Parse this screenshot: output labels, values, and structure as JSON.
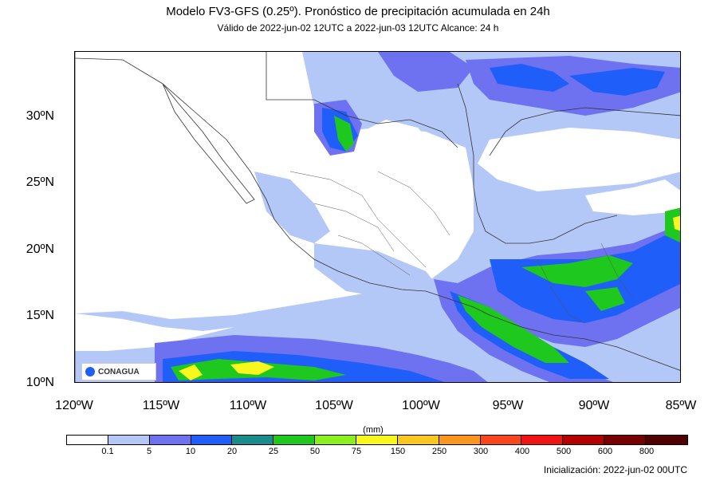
{
  "title": "Modelo FV3-GFS (0.25º). Pronóstico de precipitación acumulada en 24h",
  "subtitle": "Válido de 2022-jun-02 12UTC a 2022-jun-03 12UTC    Alcance: 24 h",
  "units": "(mm)",
  "initialization": "Inicialización: 2022-jun-02 00UTC",
  "logo_text": "CONAGUA",
  "latitudes": [
    "30ºN",
    "25ºN",
    "20ºN",
    "15ºN",
    "10ºN"
  ],
  "longitudes": [
    "120ºW",
    "115ºW",
    "110ºW",
    "105ºW",
    "100ºW",
    "95ºW",
    "90ºW",
    "85ºW"
  ],
  "colorbar": {
    "colors": [
      "#ffffff",
      "#b4c8f8",
      "#6e72f0",
      "#1f5ef8",
      "#1a8c8c",
      "#1ec81e",
      "#8cf01e",
      "#f8f81e",
      "#f8c81e",
      "#f8961e",
      "#f8461e",
      "#f01414",
      "#b40000",
      "#780000",
      "#500000"
    ],
    "labels": [
      "0.1",
      "5",
      "10",
      "20",
      "25",
      "50",
      "75",
      "150",
      "250",
      "300",
      "400",
      "500",
      "600",
      "800"
    ]
  }
}
